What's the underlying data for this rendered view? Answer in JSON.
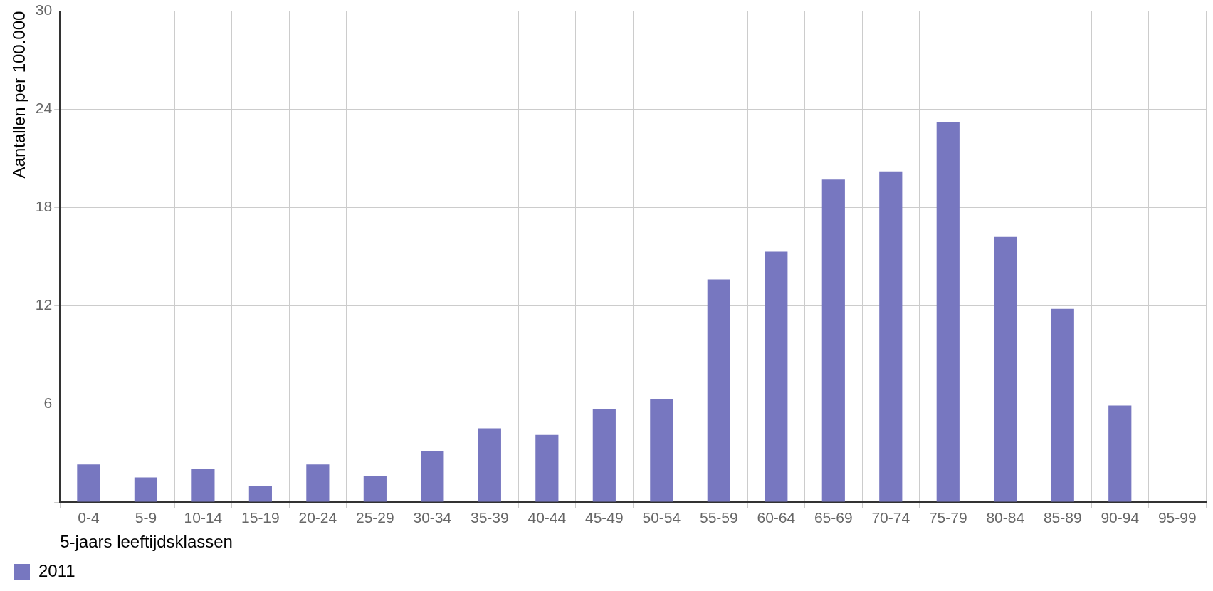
{
  "chart_data": {
    "type": "bar",
    "categories": [
      "0-4",
      "5-9",
      "10-14",
      "15-19",
      "20-24",
      "25-29",
      "30-34",
      "35-39",
      "40-44",
      "45-49",
      "50-54",
      "55-59",
      "60-64",
      "65-69",
      "70-74",
      "75-79",
      "80-84",
      "85-89",
      "90-94",
      "95-99"
    ],
    "series": [
      {
        "name": "2011",
        "color": "#7777c0",
        "values": [
          2.3,
          1.5,
          2.0,
          1.0,
          2.3,
          1.6,
          3.1,
          4.5,
          4.1,
          5.7,
          6.3,
          13.6,
          15.3,
          19.7,
          20.2,
          23.2,
          16.2,
          11.8,
          5.9,
          0
        ]
      }
    ],
    "ylim": [
      0,
      30
    ],
    "yticks": [
      {
        "value": 0,
        "label": null
      },
      6,
      12,
      18,
      24,
      30
    ],
    "xlabel": "5-jaars leeftijdsklassen",
    "ylabel": "Aantallen per 100.000",
    "grid": true,
    "legend": "bottom left"
  }
}
